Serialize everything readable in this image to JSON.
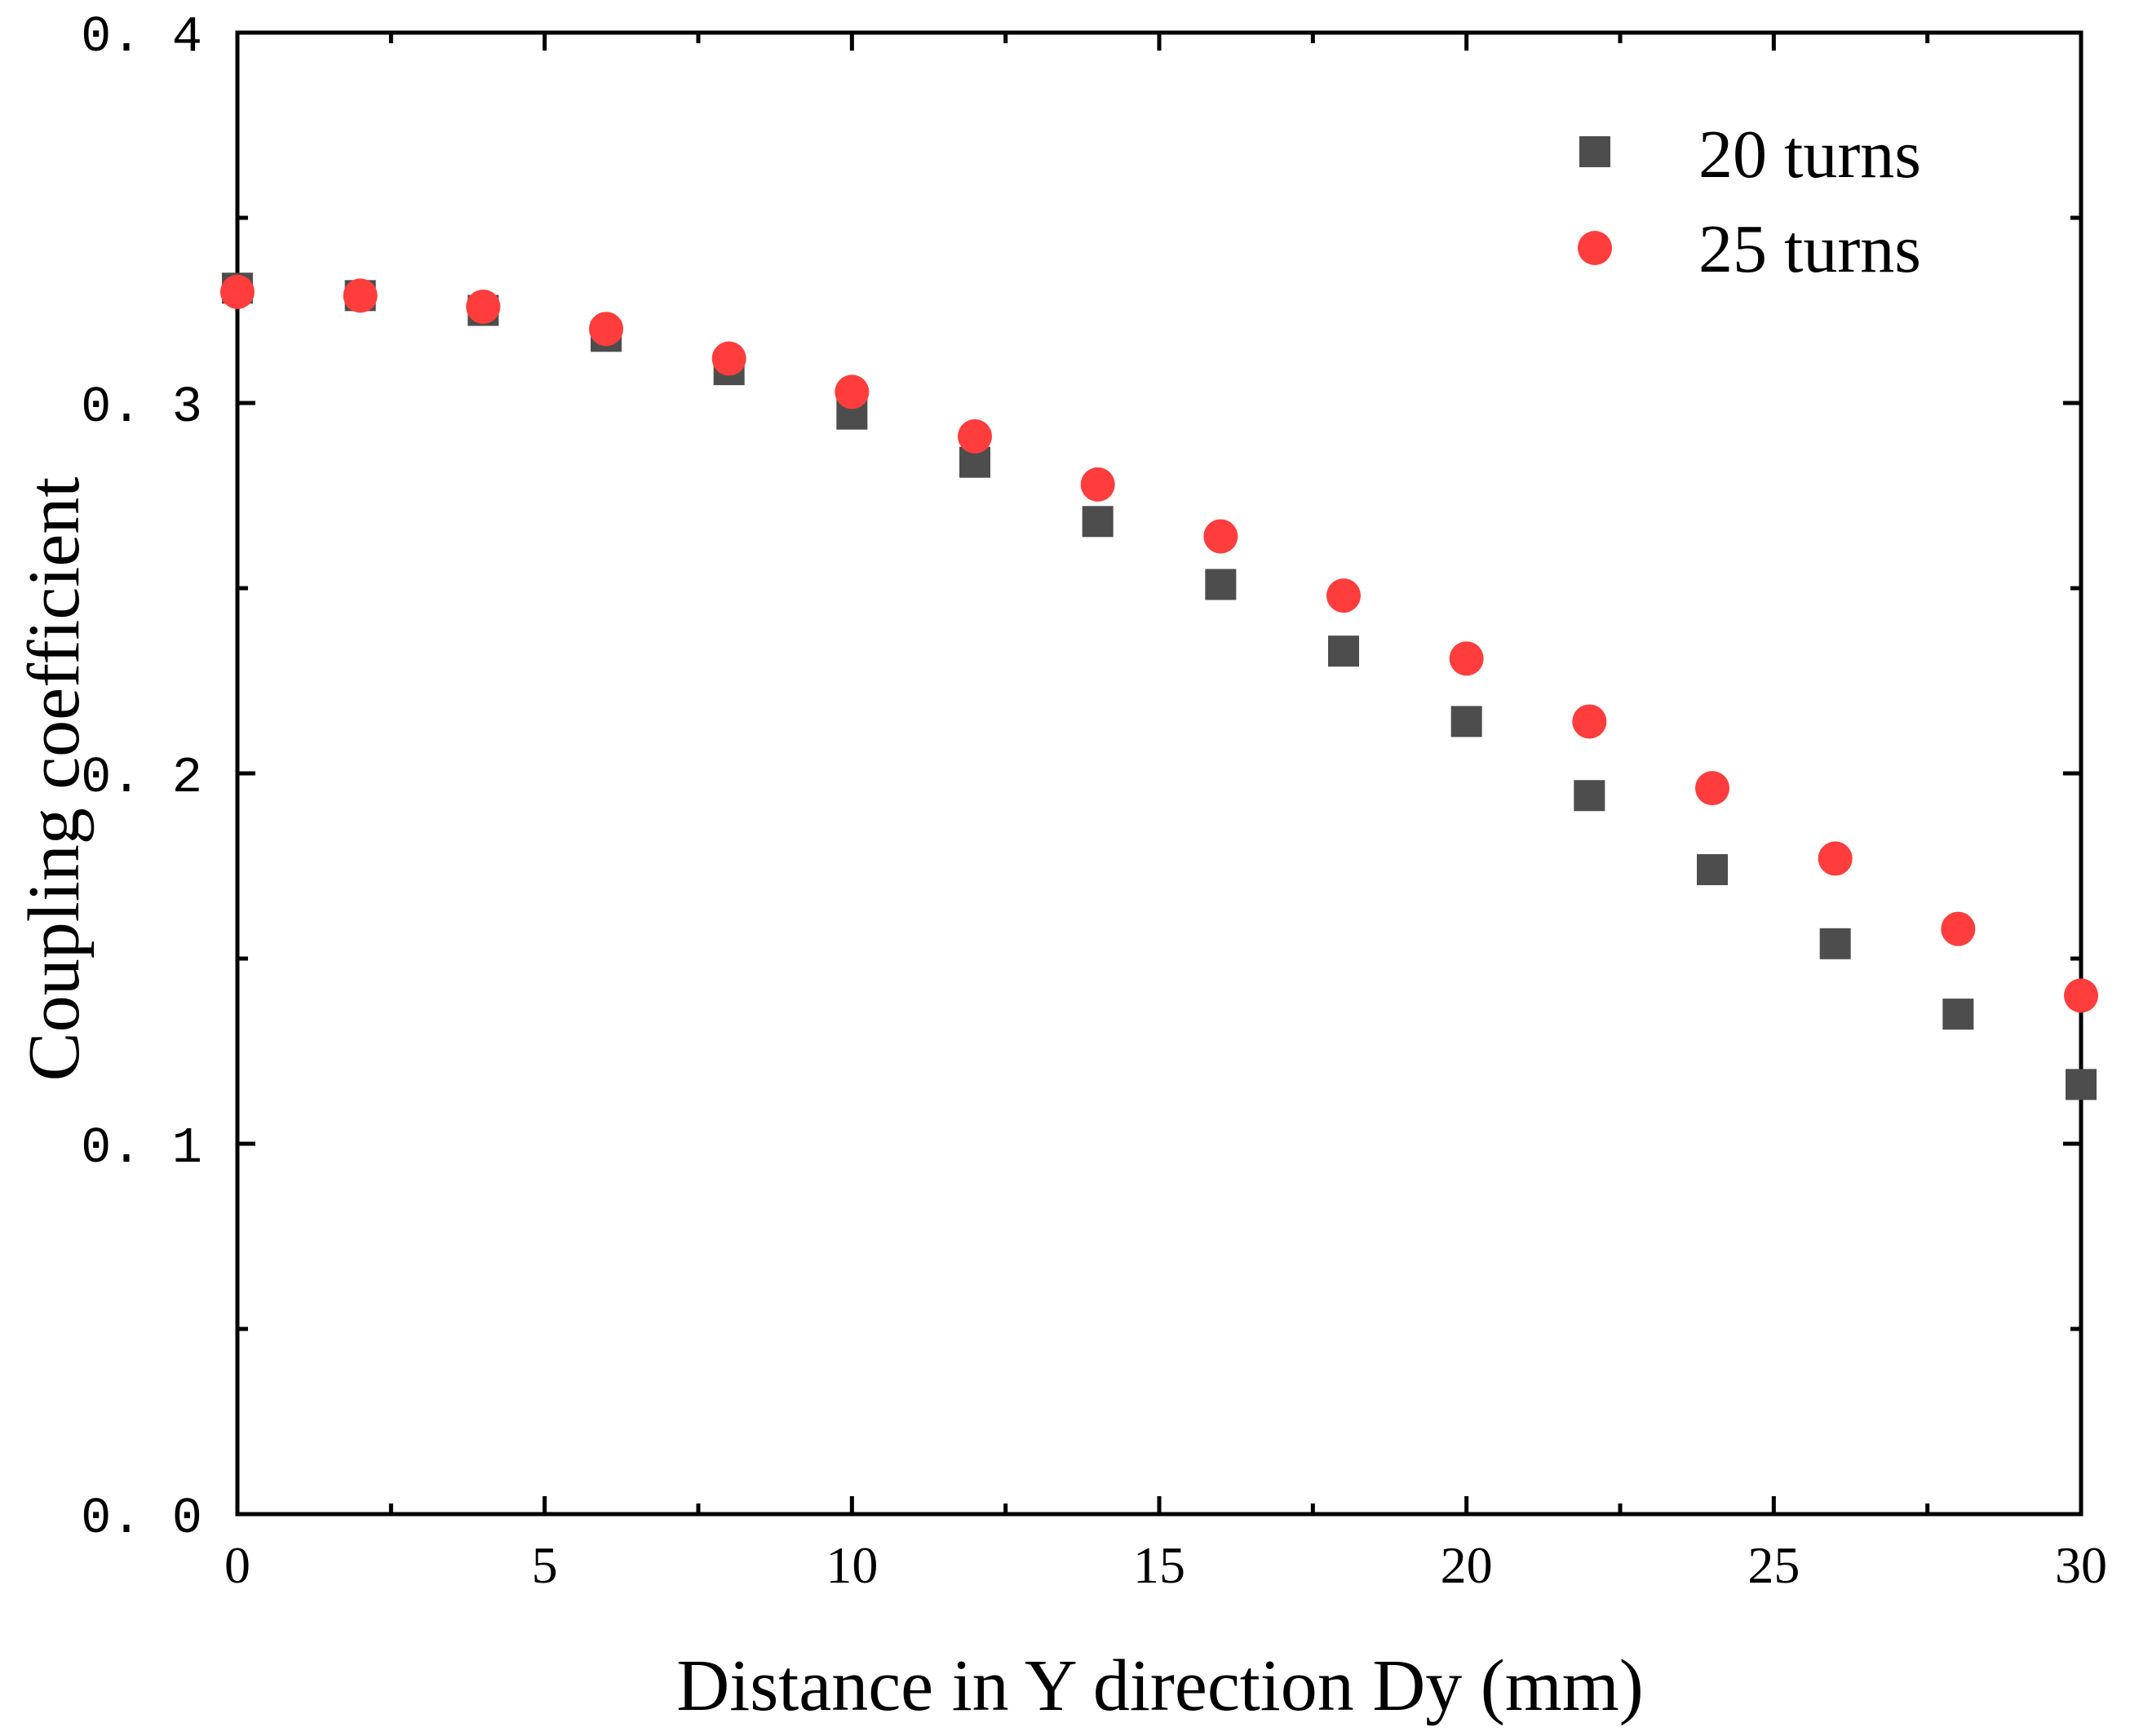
{
  "chart_data": {
    "type": "scatter",
    "title": "",
    "xlabel": "Distance in Y direction Dy (mm)",
    "ylabel": "Coupling coefficient",
    "xlim": [
      0,
      30
    ],
    "ylim": [
      0.0,
      0.4
    ],
    "x_ticks": [
      0,
      5,
      10,
      15,
      20,
      25,
      30
    ],
    "x_tick_labels": [
      "0",
      "5",
      "10",
      "15",
      "20",
      "25",
      "30"
    ],
    "y_ticks": [
      0.0,
      0.1,
      0.2,
      0.3,
      0.4
    ],
    "y_tick_labels": [
      "0. 0",
      "0. 1",
      "0. 2",
      "0. 3",
      "0. 4"
    ],
    "grid": false,
    "legend_position": "top-right",
    "x": [
      0,
      2,
      4,
      6,
      8,
      10,
      12,
      14,
      16,
      18,
      20,
      22,
      24,
      26,
      28,
      30
    ],
    "series": [
      {
        "name": "20 turns",
        "marker": "square",
        "color": "#4d4d4d",
        "values": [
          0.331,
          0.329,
          0.325,
          0.318,
          0.309,
          0.297,
          0.284,
          0.268,
          0.251,
          0.233,
          0.214,
          0.194,
          0.174,
          0.154,
          0.135,
          0.116
        ]
      },
      {
        "name": "25 turns",
        "marker": "circle",
        "color": "#ff3d3d",
        "values": [
          0.33,
          0.329,
          0.326,
          0.32,
          0.312,
          0.303,
          0.291,
          0.278,
          0.264,
          0.248,
          0.231,
          0.214,
          0.196,
          0.177,
          0.158,
          0.14
        ]
      }
    ]
  }
}
